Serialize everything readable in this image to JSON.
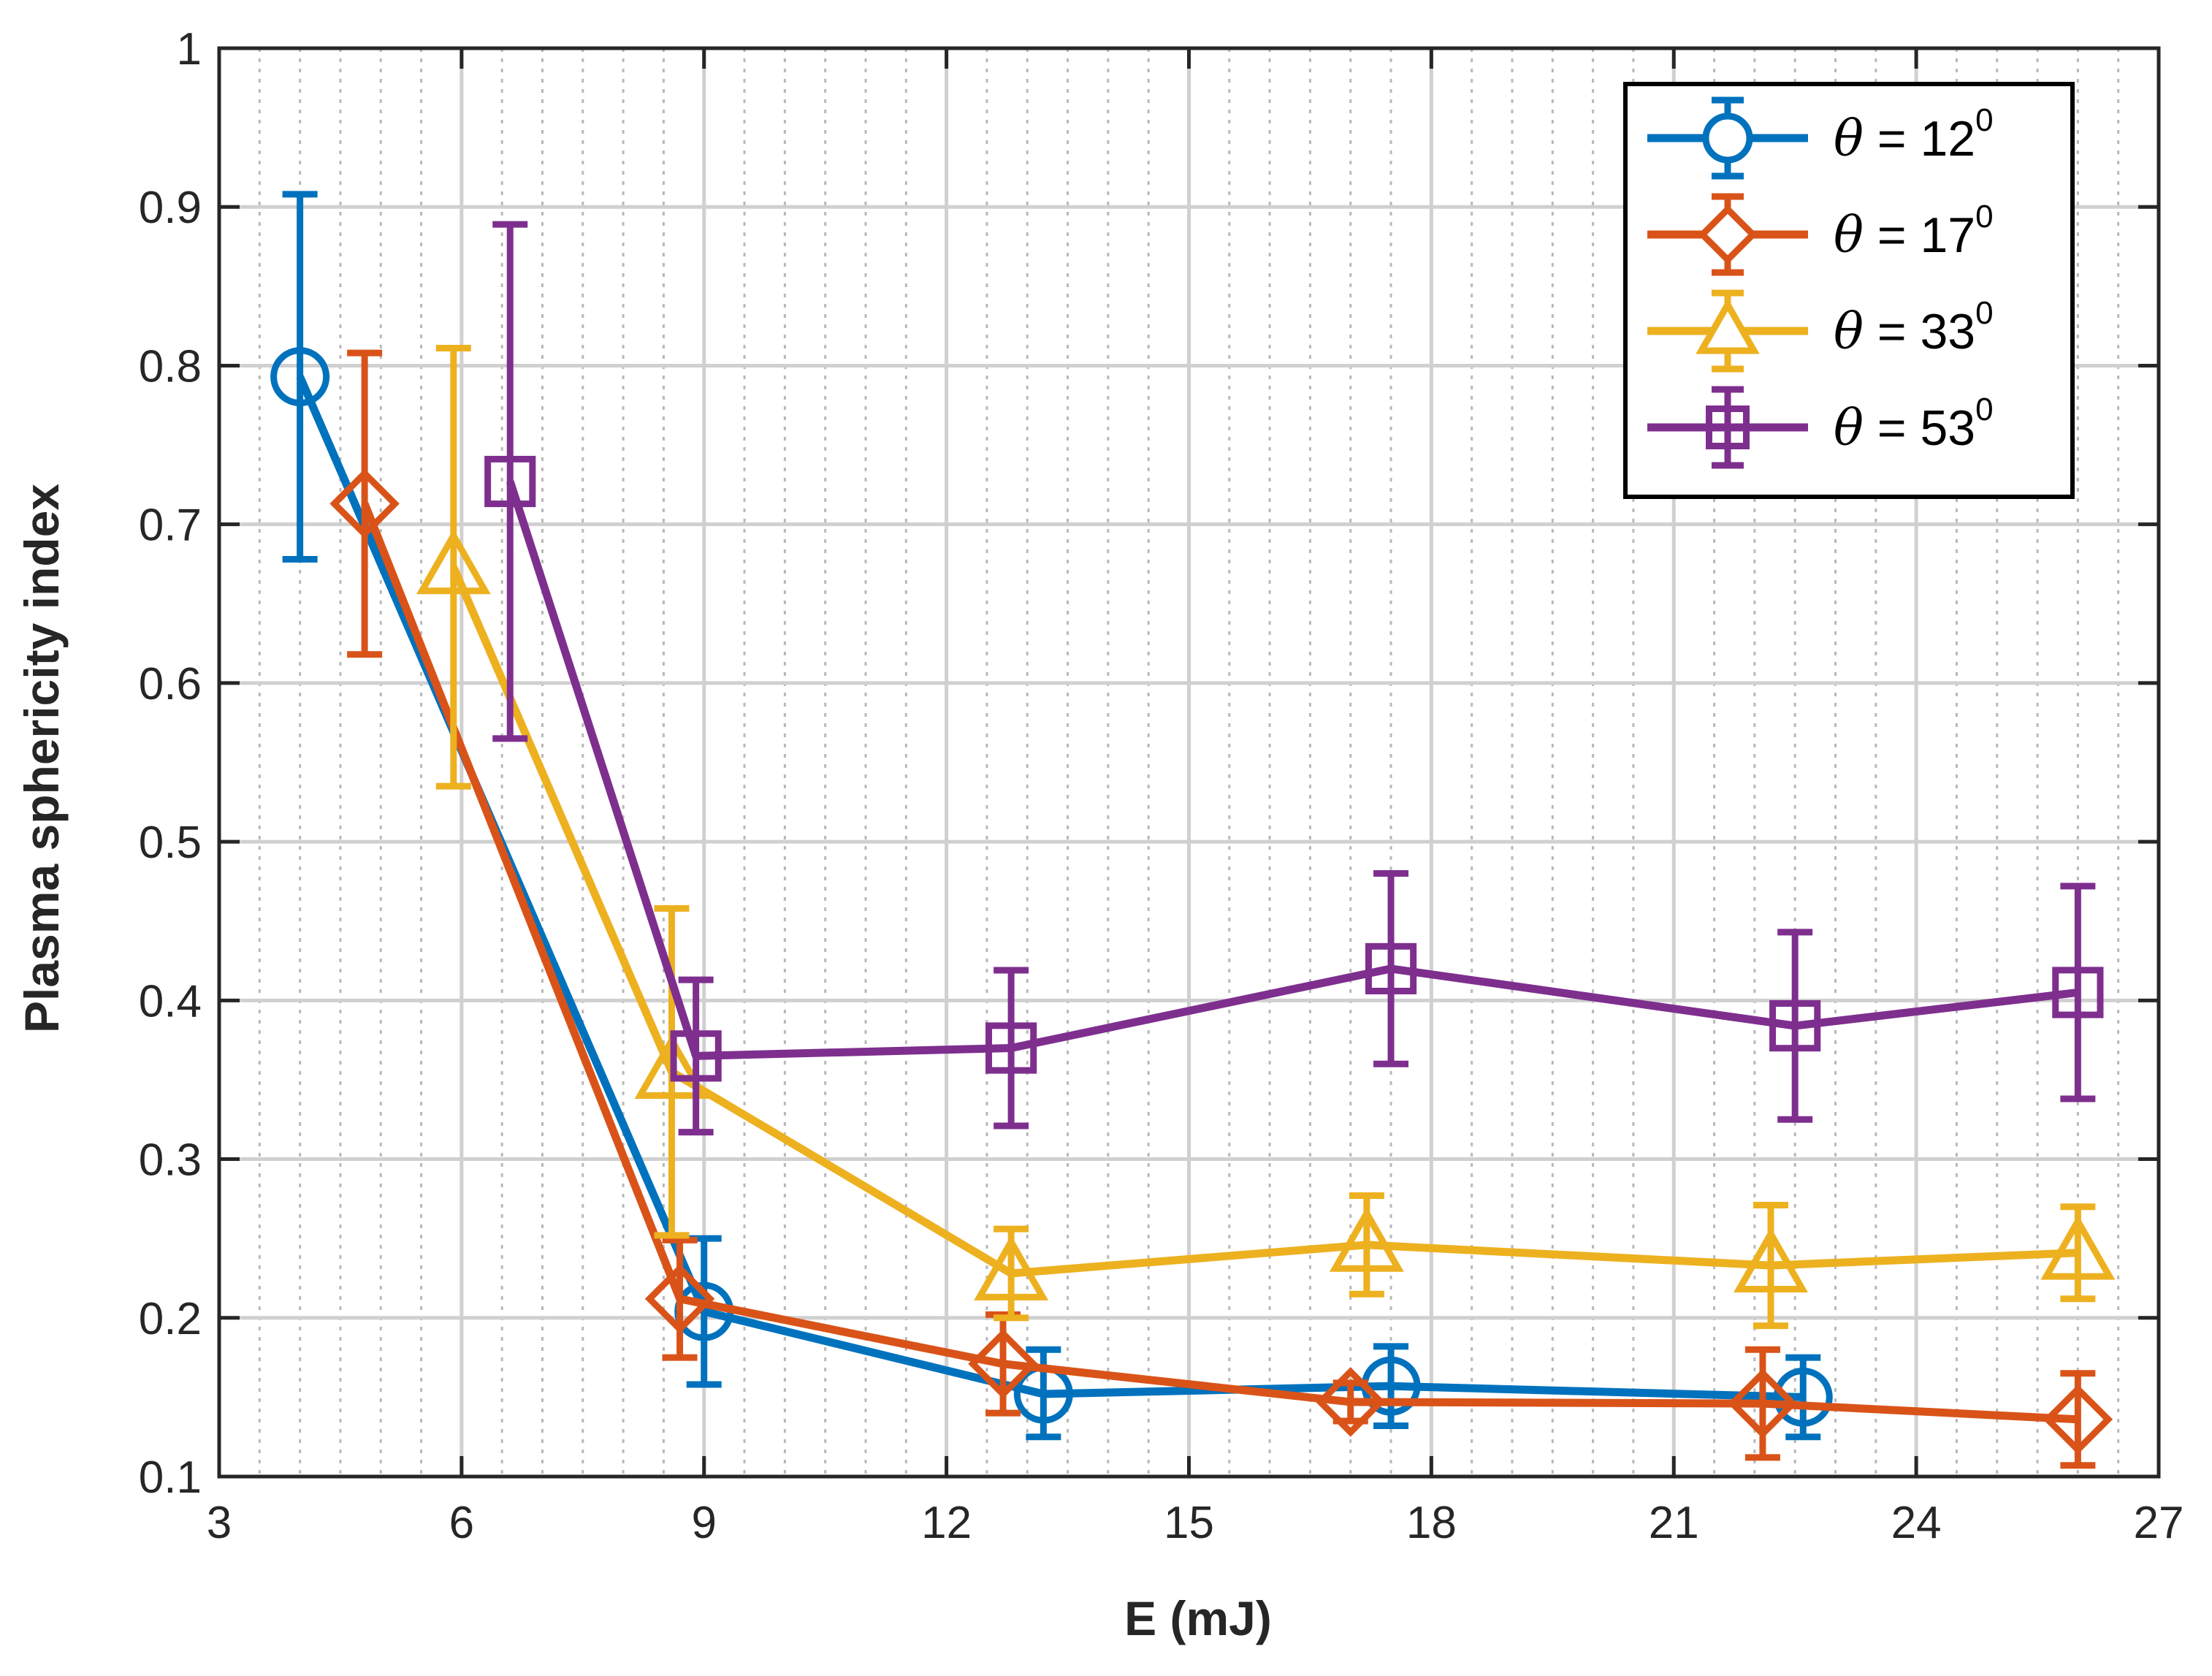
{
  "chart_data": {
    "type": "line",
    "title": "",
    "xlabel": "E (mJ)",
    "ylabel": "Plasma sphericity index",
    "xlim": [
      3,
      27
    ],
    "ylim": [
      0.1,
      1.0
    ],
    "xticks": [
      3,
      6,
      9,
      12,
      15,
      18,
      21,
      24,
      27
    ],
    "yticks": [
      0.1,
      0.2,
      0.3,
      0.4,
      0.5,
      0.6,
      0.7,
      0.8,
      0.9,
      1
    ],
    "ytick_labels": [
      "0.1",
      "0.2",
      "0.3",
      "0.4",
      "0.5",
      "0.6",
      "0.7",
      "0.8",
      "0.9",
      "1"
    ],
    "grid": true,
    "minor_grid": true,
    "legend_position": "top-right",
    "series": [
      {
        "name": "θ = 12⁰",
        "legend_prefix": "θ",
        "legend_mid": " = 12",
        "legend_sup": "0",
        "color": "#0072BD",
        "marker": "circle",
        "x": [
          4.0,
          9.0,
          13.2,
          17.5,
          22.6
        ],
        "y": [
          0.793,
          0.204,
          0.152,
          0.157,
          0.15
        ],
        "err_low": [
          0.678,
          0.158,
          0.125,
          0.132,
          0.125
        ],
        "err_high": [
          0.908,
          0.25,
          0.18,
          0.182,
          0.175
        ]
      },
      {
        "name": "θ = 17⁰",
        "legend_prefix": "θ",
        "legend_mid": " = 17",
        "legend_sup": "0",
        "color": "#D95319",
        "marker": "diamond",
        "x": [
          4.8,
          8.7,
          12.7,
          17.0,
          22.1,
          26.0
        ],
        "y": [
          0.713,
          0.212,
          0.171,
          0.147,
          0.146,
          0.136
        ],
        "err_low": [
          0.618,
          0.175,
          0.14,
          0.135,
          0.112,
          0.107
        ],
        "err_high": [
          0.808,
          0.249,
          0.202,
          0.159,
          0.18,
          0.165
        ]
      },
      {
        "name": "θ = 33⁰",
        "legend_prefix": "θ",
        "legend_mid": " = 33",
        "legend_sup": "0",
        "color": "#EDB120",
        "marker": "triangle",
        "x": [
          5.9,
          8.6,
          12.8,
          17.2,
          22.2,
          26.0
        ],
        "y": [
          0.673,
          0.355,
          0.228,
          0.246,
          0.233,
          0.241
        ],
        "err_low": [
          0.535,
          0.252,
          0.2,
          0.215,
          0.195,
          0.212
        ],
        "err_high": [
          0.811,
          0.458,
          0.256,
          0.277,
          0.271,
          0.27
        ]
      },
      {
        "name": "θ = 53⁰",
        "legend_prefix": "θ",
        "legend_mid": " = 53",
        "legend_sup": "0",
        "color": "#7E2F8E",
        "marker": "square",
        "x": [
          6.6,
          8.9,
          12.8,
          17.5,
          22.5,
          26.0
        ],
        "y": [
          0.727,
          0.365,
          0.37,
          0.42,
          0.384,
          0.405
        ],
        "err_low": [
          0.565,
          0.317,
          0.321,
          0.36,
          0.325,
          0.338
        ],
        "err_high": [
          0.889,
          0.413,
          0.419,
          0.48,
          0.443,
          0.472
        ]
      }
    ]
  }
}
